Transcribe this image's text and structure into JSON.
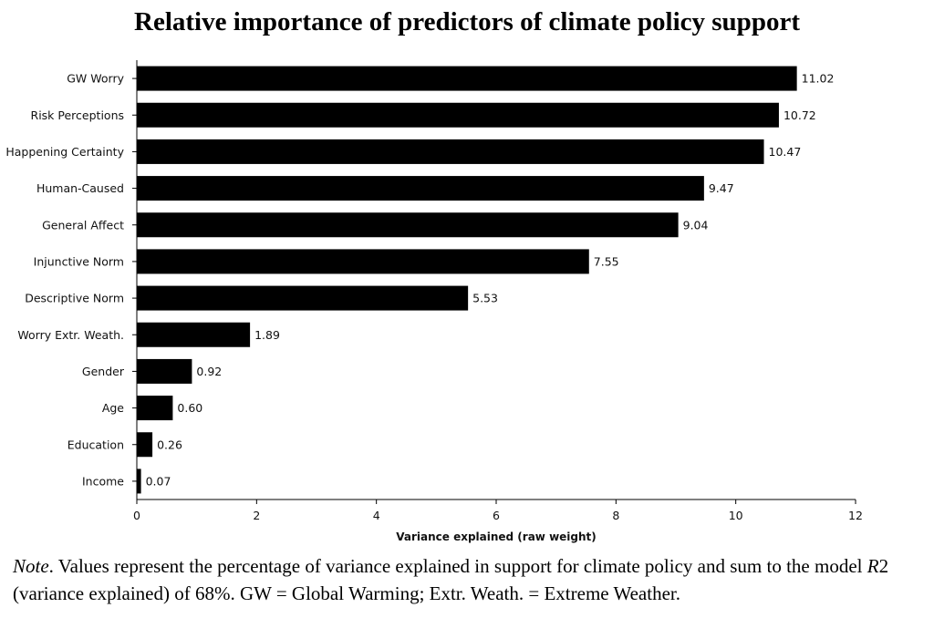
{
  "chart_data": {
    "type": "bar",
    "orientation": "horizontal",
    "title": "Relative importance of predictors of climate policy support",
    "xlabel": "Variance explained (raw weight)",
    "ylabel": "",
    "categories": [
      "GW Worry",
      "Risk Perceptions",
      "Happening Certainty",
      "Human-Caused",
      "General Affect",
      "Injunctive Norm",
      "Descriptive Norm",
      "Worry Extr. Weath.",
      "Gender",
      "Age",
      "Education",
      "Income"
    ],
    "values": [
      11.02,
      10.72,
      10.47,
      9.47,
      9.04,
      7.55,
      5.53,
      1.89,
      0.92,
      0.6,
      0.26,
      0.07
    ],
    "value_labels": [
      "11.02",
      "10.72",
      "10.47",
      "9.47",
      "9.04",
      "7.55",
      "5.53",
      "1.89",
      "0.92",
      "0.60",
      "0.26",
      "0.07"
    ],
    "xlim": [
      0,
      12
    ],
    "xticks": [
      0,
      2,
      4,
      6,
      8,
      10,
      12
    ],
    "grid": false,
    "bar_color": "#000000"
  },
  "note": {
    "label": "Note",
    "text_before_r2": ". Values represent the percentage of variance explained in support for climate policy and sum to the model ",
    "r2_symbol": "R",
    "text_after_r2": "2 (variance explained) of 68%. GW = Global Warming; Extr. Weath. = Extreme Weather."
  }
}
